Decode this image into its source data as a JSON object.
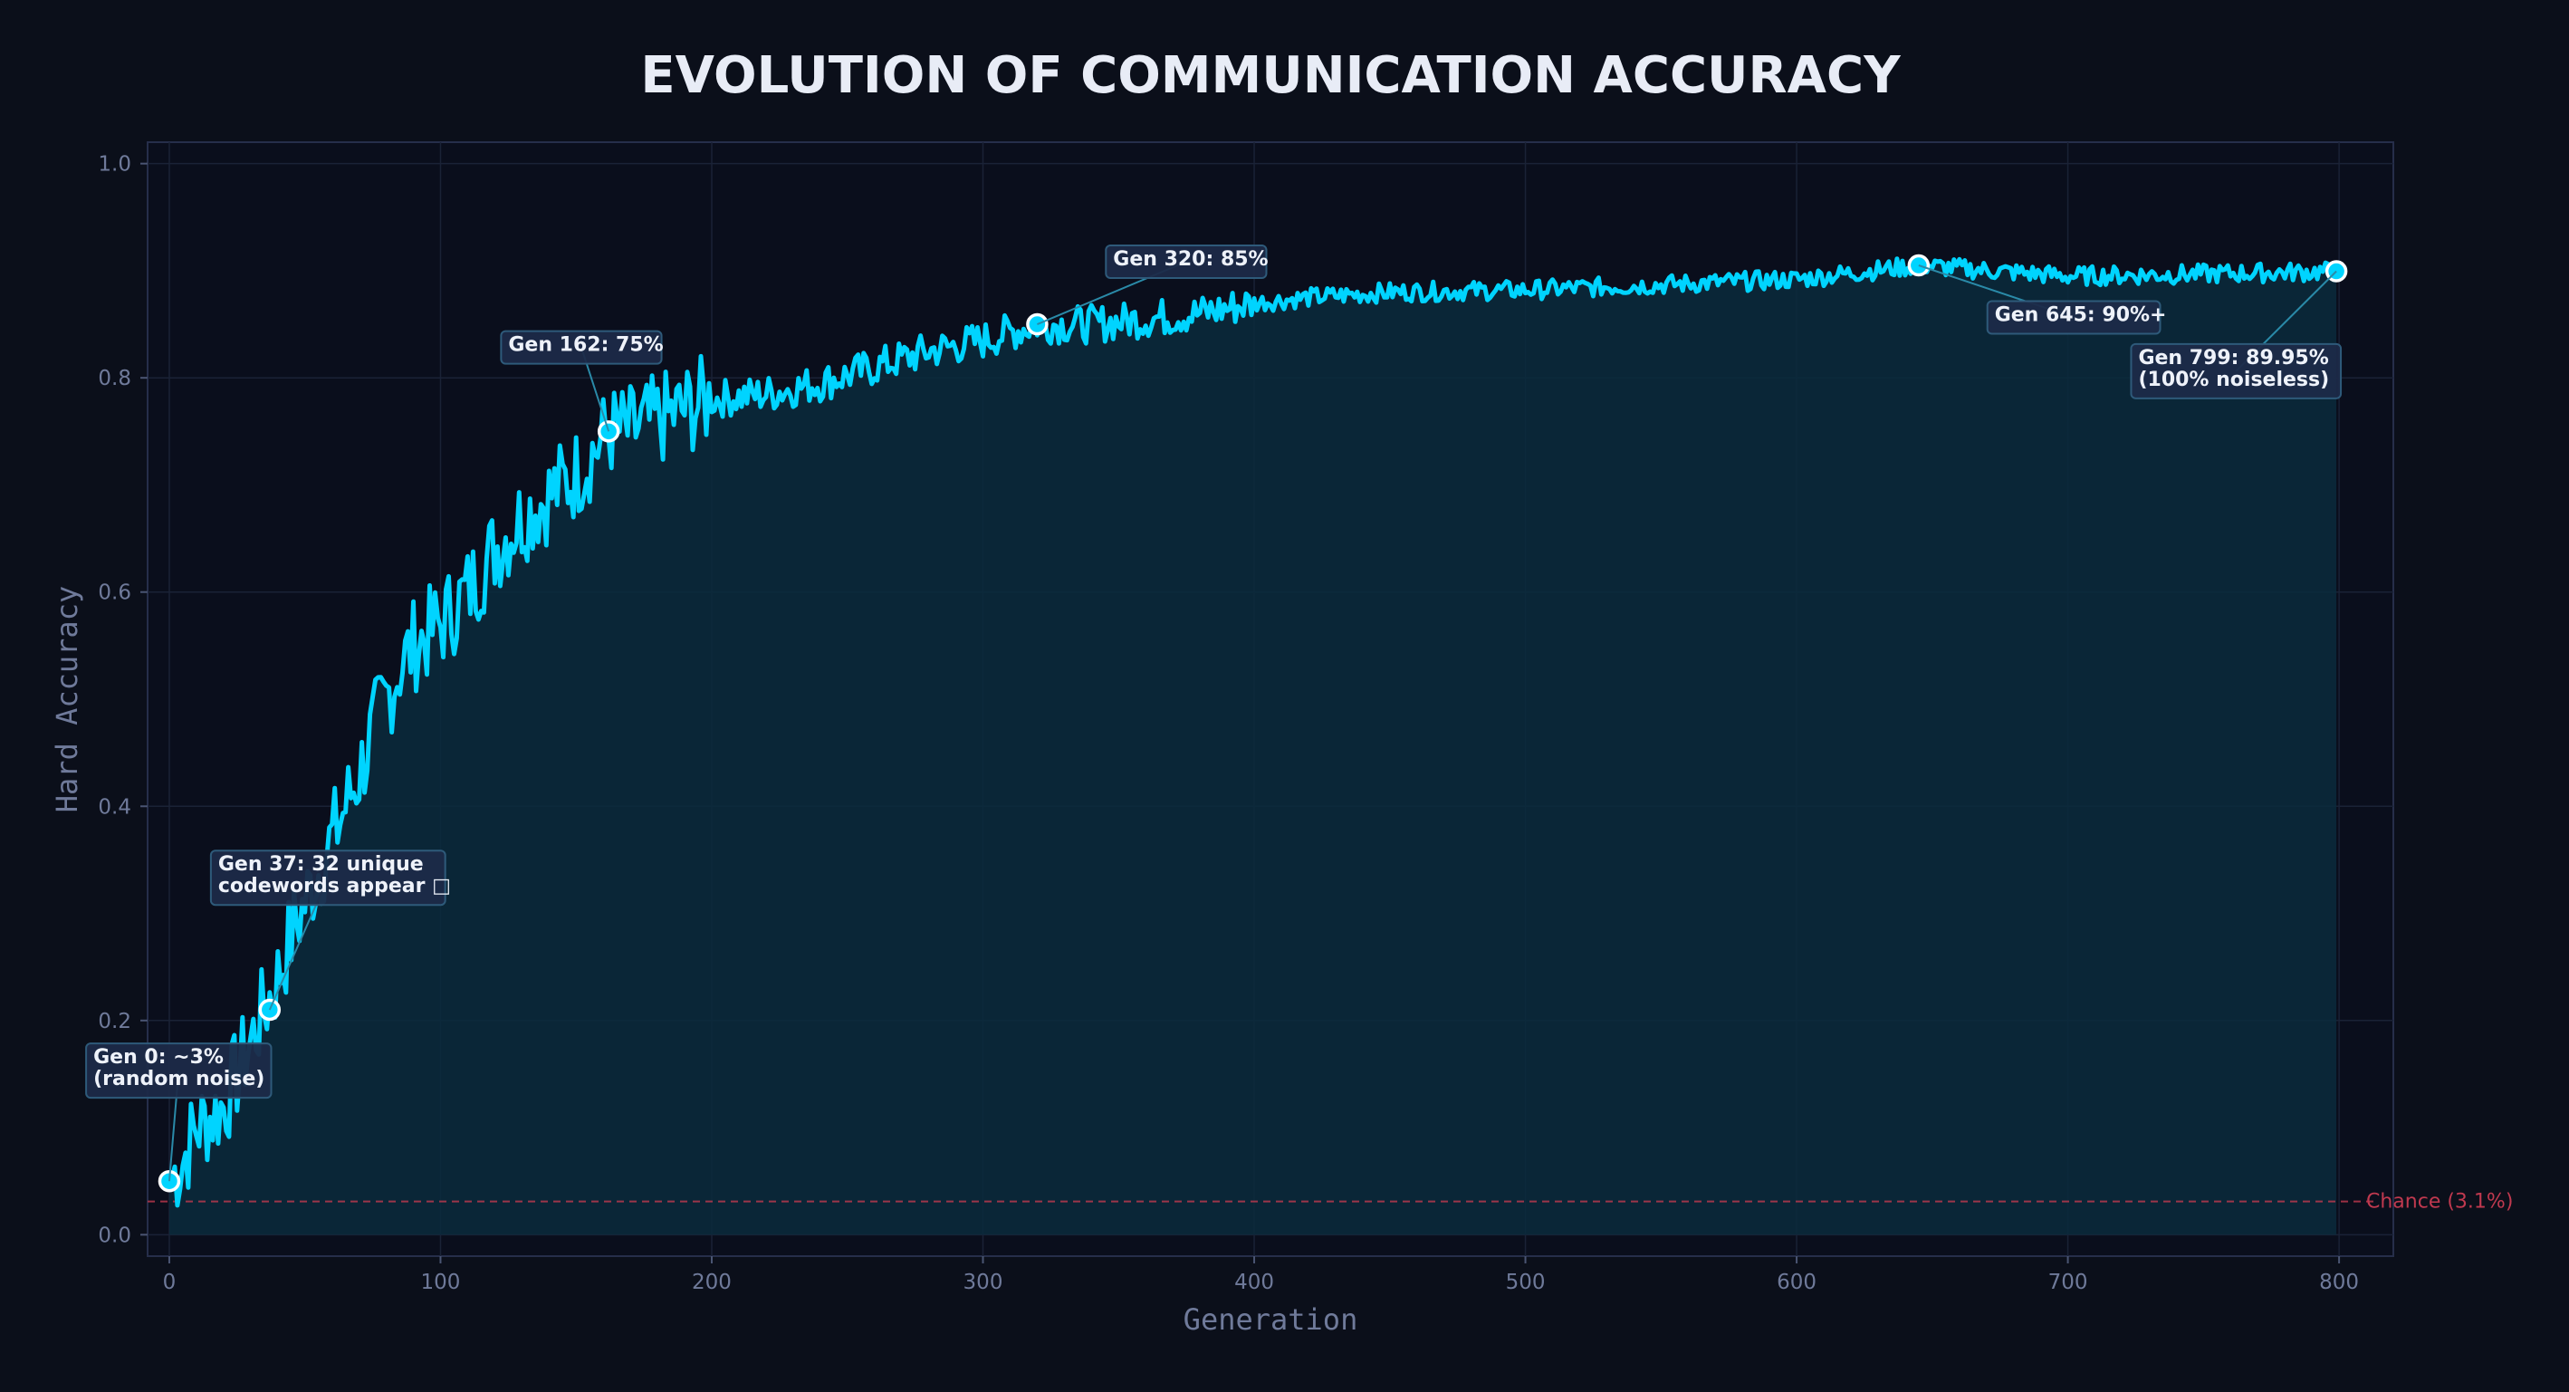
{
  "chart_data": {
    "type": "line",
    "title": "EVOLUTION OF COMMUNICATION ACCURACY",
    "xlabel": "Generation",
    "ylabel": "Hard Accuracy",
    "xlim": [
      -8,
      820
    ],
    "ylim": [
      -0.02,
      1.02
    ],
    "xticks": [
      0,
      100,
      200,
      300,
      400,
      500,
      600,
      700,
      800
    ],
    "yticks": [
      "0.0",
      "0.2",
      "0.4",
      "0.6",
      "0.8",
      "1.0"
    ],
    "grid": true,
    "colors": {
      "line": "#00d4ff",
      "fill": "#0a2a3c",
      "chance": "#c0394f",
      "background": "#0b0f1a",
      "annotation_bg": "#1c2a48",
      "annotation_border": "#2e5a7a"
    },
    "series": [
      {
        "x": [
          0,
          5,
          10,
          15,
          20,
          25,
          30,
          35,
          40,
          45,
          50,
          55,
          60,
          65,
          70,
          75,
          80,
          85,
          90,
          95,
          100,
          110,
          120,
          130,
          140,
          150,
          162,
          170,
          180,
          190,
          200,
          220,
          240,
          260,
          280,
          300,
          320,
          340,
          360,
          380,
          400,
          420,
          450,
          500,
          550,
          600,
          645,
          700,
          750,
          799
        ],
        "y": [
          0.05,
          0.07,
          0.1,
          0.11,
          0.12,
          0.15,
          0.18,
          0.21,
          0.24,
          0.28,
          0.31,
          0.34,
          0.37,
          0.4,
          0.43,
          0.47,
          0.5,
          0.53,
          0.55,
          0.56,
          0.57,
          0.6,
          0.64,
          0.67,
          0.69,
          0.71,
          0.75,
          0.75,
          0.76,
          0.77,
          0.78,
          0.785,
          0.795,
          0.81,
          0.825,
          0.835,
          0.85,
          0.85,
          0.855,
          0.86,
          0.87,
          0.875,
          0.88,
          0.882,
          0.887,
          0.892,
          0.905,
          0.895,
          0.897,
          0.8995
        ]
      }
    ],
    "markers": [
      {
        "x": 0,
        "y": 0.05
      },
      {
        "x": 37,
        "y": 0.21
      },
      {
        "x": 162,
        "y": 0.75
      },
      {
        "x": 320,
        "y": 0.85
      },
      {
        "x": 645,
        "y": 0.905
      },
      {
        "x": 799,
        "y": 0.8995
      }
    ],
    "chance": {
      "y": 0.031,
      "label": "Chance (3.1%)"
    },
    "annotations": [
      {
        "lines": [
          "Gen 0: ~3%",
          "(random noise)"
        ],
        "x": 0,
        "y": 0.05,
        "text_x": -28,
        "text_y": 0.16
      },
      {
        "lines": [
          "Gen 37: 32 unique",
          "codewords appear □"
        ],
        "x": 37,
        "y": 0.21,
        "text_x": 18,
        "text_y": 0.34
      },
      {
        "lines": [
          "Gen 162: 75%"
        ],
        "x": 162,
        "y": 0.75,
        "text_x": 125,
        "text_y": 0.825
      },
      {
        "lines": [
          "Gen 320: 85%"
        ],
        "x": 320,
        "y": 0.85,
        "text_x": 348,
        "text_y": 0.905
      },
      {
        "lines": [
          "Gen 645: 90%+"
        ],
        "x": 645,
        "y": 0.905,
        "text_x": 673,
        "text_y": 0.853
      },
      {
        "lines": [
          "Gen 799: 89.95%",
          "(100% noiseless)"
        ],
        "x": 799,
        "y": 0.8995,
        "text_x": 726,
        "text_y": 0.813
      }
    ]
  }
}
